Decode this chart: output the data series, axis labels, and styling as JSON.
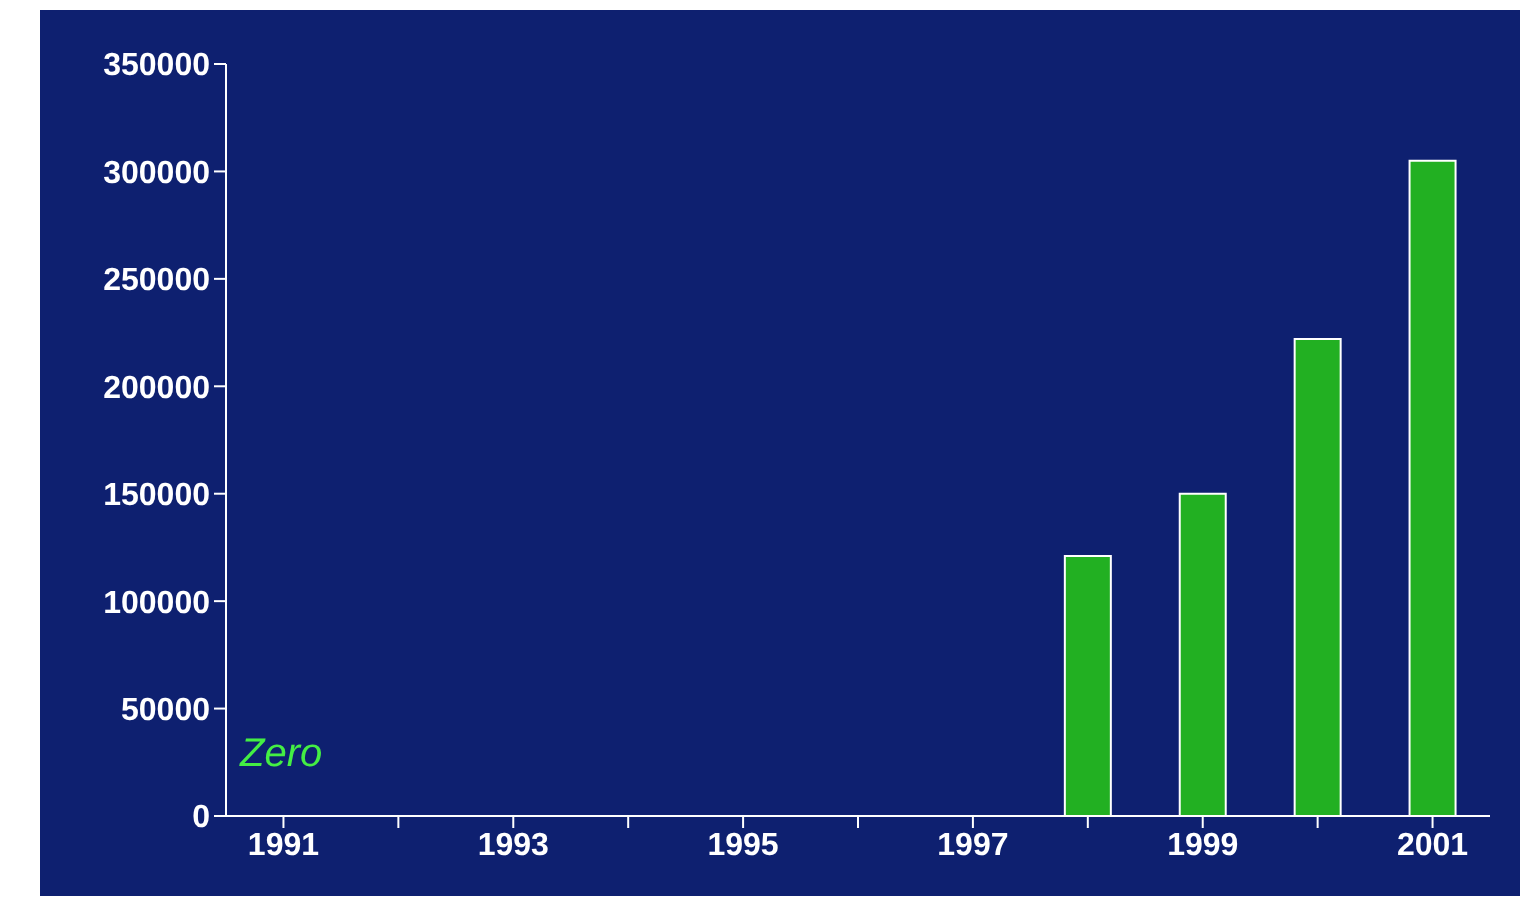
{
  "chart_data": {
    "type": "bar",
    "categories": [
      "1991",
      null,
      "1993",
      null,
      "1995",
      null,
      "1997",
      null,
      "1999",
      null,
      "2001"
    ],
    "values": [
      0,
      0,
      0,
      0,
      0,
      0,
      0,
      121000,
      150000,
      222000,
      305000
    ],
    "color": "#22b022",
    "ylim": [
      0,
      350000
    ],
    "yticks": [
      0,
      50000,
      100000,
      150000,
      200000,
      250000,
      300000,
      350000
    ],
    "annotations": [
      "Zero"
    ],
    "grid": false,
    "legend": false
  }
}
